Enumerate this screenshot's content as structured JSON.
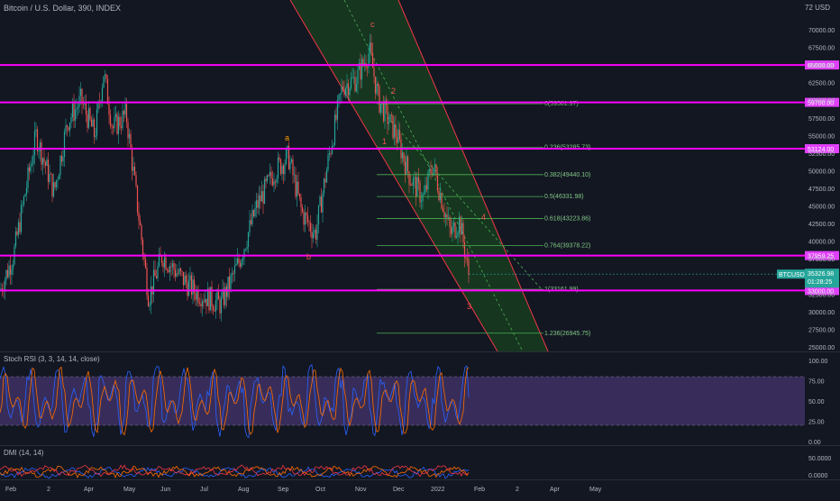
{
  "header": {
    "title": "Bitcoin / U.S. Dollar, 390, INDEX"
  },
  "price_axis": {
    "currency": "USD",
    "top_label": "72",
    "ticks": [
      "70000.00",
      "67500.00",
      "65000.00",
      "62500.00",
      "60000.00",
      "57500.00",
      "55000.00",
      "52500.00",
      "50000.00",
      "47500.00",
      "45000.00",
      "42500.00",
      "40000.00",
      "37500.00",
      "35000.00",
      "32500.00",
      "30000.00",
      "27500.00",
      "25000.00"
    ],
    "ticks_value": [
      70000,
      67500,
      65000,
      62500,
      60000,
      57500,
      55000,
      52500,
      50000,
      47500,
      45000,
      42500,
      40000,
      37500,
      35000,
      32500,
      30000,
      27500,
      25000
    ]
  },
  "horizontal_levels": [
    {
      "label": "65000.00",
      "price": 65000
    },
    {
      "label": "59700.00",
      "price": 59700
    },
    {
      "label": "53124.00",
      "price": 53124
    },
    {
      "label": "37959.25",
      "price": 37959.25
    },
    {
      "label": "33000.00",
      "price": 33000
    }
  ],
  "fib_levels": [
    {
      "label": "0(59501.97)",
      "price": 59501.97
    },
    {
      "label": "0.236(53285.73)",
      "price": 53285.73
    },
    {
      "label": "0.382(49440.10)",
      "price": 49440.1
    },
    {
      "label": "0.5(46331.98)",
      "price": 46331.98
    },
    {
      "label": "0.618(43223.86)",
      "price": 43223.86
    },
    {
      "label": "0.764(39378.22)",
      "price": 39378.22
    },
    {
      "label": "1(33161.99)",
      "price": 33161.99
    },
    {
      "label": "1.236(26945.75)",
      "price": 26945.75
    }
  ],
  "current_price": {
    "symbol": "BTCUSD",
    "price_label": "35326.98",
    "countdown": "01:28:25",
    "price": 35326.98
  },
  "wave_labels": [
    {
      "text": "c",
      "color": "#ef5350"
    },
    {
      "text": "a",
      "color": "#ff9800"
    },
    {
      "text": "b",
      "color": "#ef5350"
    },
    {
      "text": "1",
      "color": "#ef5350"
    },
    {
      "text": "2",
      "color": "#ef5350"
    },
    {
      "text": "3",
      "color": "#ef5350"
    },
    {
      "text": "4",
      "color": "#ef5350"
    }
  ],
  "rsi": {
    "title": "Stoch RSI (3, 3, 14, 14, close)",
    "ticks": [
      "100.00",
      "75.00",
      "50.00",
      "25.00",
      "0.00"
    ],
    "ticks_value": [
      100,
      75,
      50,
      25,
      0
    ],
    "band": [
      20,
      80
    ]
  },
  "dmi": {
    "title": "DMI (14, 14)",
    "ticks": [
      "50.0000",
      "0.0000"
    ]
  },
  "time_axis": {
    "labels": [
      "Feb",
      "2",
      "Apr",
      "May",
      "Jun",
      "Jul",
      "Aug",
      "Sep",
      "Oct",
      "Nov",
      "Dec",
      "2022",
      "Feb",
      "2",
      "Apr",
      "May"
    ]
  },
  "colors": {
    "background": "#131722",
    "level_line": "#ff00ff",
    "level_label_bg": "#e040fb",
    "fib_line": "#4caf50",
    "channel_fill": "#1b5e20",
    "channel_border": "#f23645",
    "candle_up": "#26a69a",
    "candle_down": "#ef5350",
    "price_tag": "#26a69a",
    "rsi_band": "#7e57c2",
    "rsi_k": "#2962ff",
    "rsi_d": "#ff6d00",
    "dmi_plus": "#2962ff",
    "dmi_minus": "#ff6d00",
    "dmi_adx": "#f23645"
  }
}
